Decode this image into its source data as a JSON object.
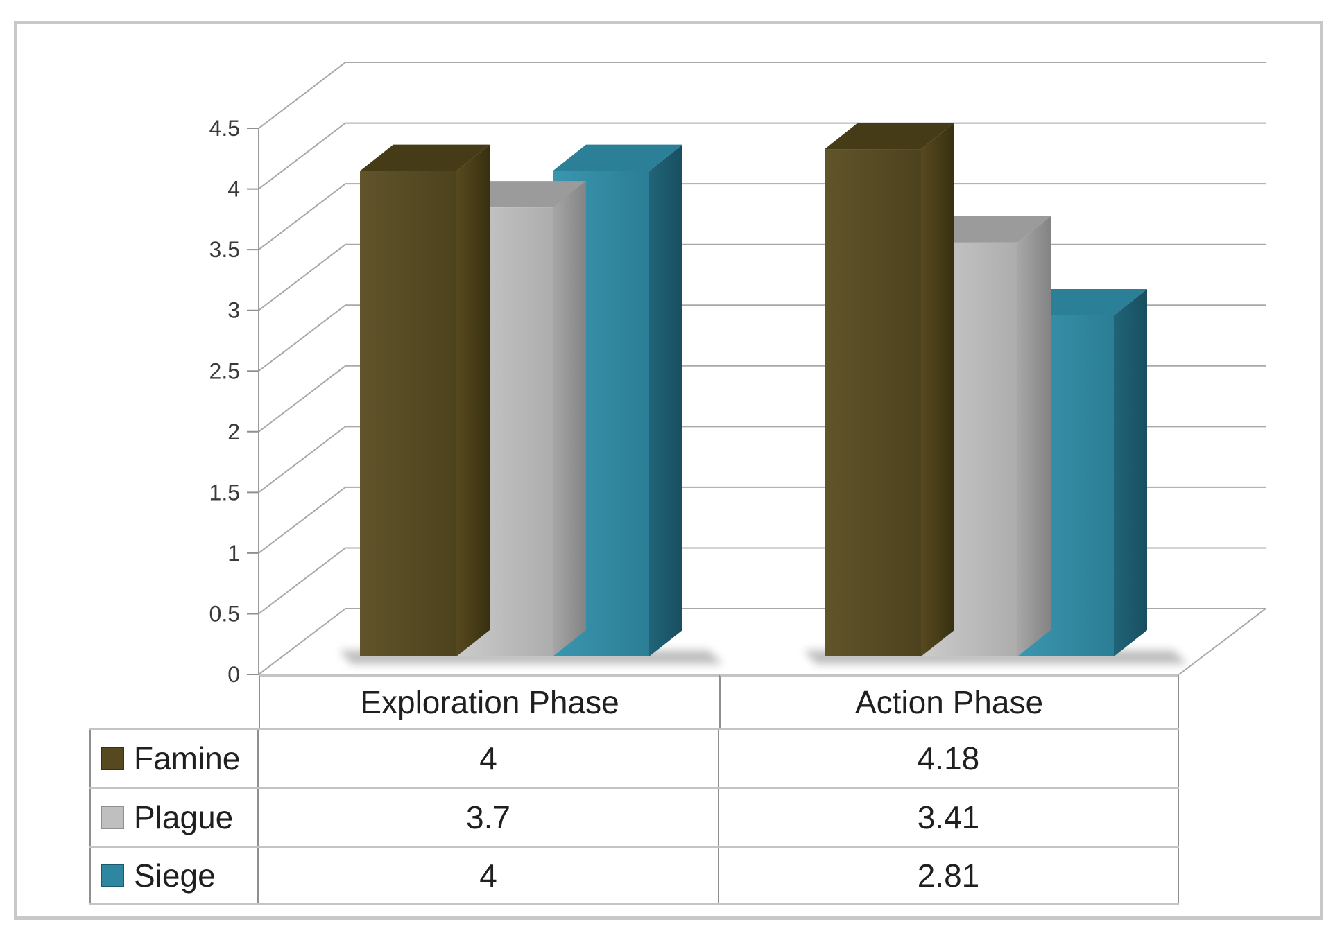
{
  "chart_data": {
    "type": "bar",
    "variant": "3d-clustered-column",
    "categories": [
      "Exploration Phase",
      "Action Phase"
    ],
    "series": [
      {
        "name": "Famine",
        "values": [
          4,
          4.18
        ],
        "color": "#57491f",
        "border": "#39300f"
      },
      {
        "name": "Plague",
        "values": [
          3.7,
          3.41
        ],
        "color": "#bfbfbf",
        "border": "#8f8f8f"
      },
      {
        "name": "Siege",
        "values": [
          4,
          2.81
        ],
        "color": "#2e86a0",
        "border": "#1a5a6c"
      }
    ],
    "title": "",
    "xlabel": "",
    "ylabel": "",
    "ylim": [
      0,
      4.5
    ],
    "ytick_step": 0.5,
    "yticks": [
      "4.5",
      "4",
      "3.5",
      "3",
      "2.5",
      "2",
      "1.5",
      "1",
      "0.5",
      "0"
    ],
    "grid": true,
    "legend_position": "table-left",
    "colors": {
      "gridline": "#a8a8a8",
      "axis": "#9b9b9b",
      "frame_border": "#c8c8c8",
      "table_border_h": "#c4c4c4",
      "table_border_v": "#8f8f8f",
      "tick_text": "#3a3a3a",
      "table_text": "#1f1f1f"
    }
  },
  "table": {
    "col_headers": [
      "Exploration Phase",
      "Action Phase"
    ],
    "rows": [
      {
        "label": "Famine",
        "values": [
          "4",
          "4.18"
        ]
      },
      {
        "label": "Plague",
        "values": [
          "3.7",
          "3.41"
        ]
      },
      {
        "label": "Siege",
        "values": [
          "4",
          "2.81"
        ]
      }
    ]
  }
}
